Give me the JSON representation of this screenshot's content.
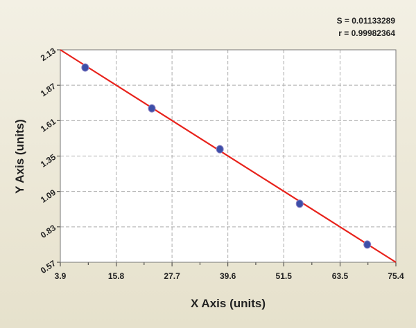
{
  "chart_data": {
    "type": "scatter",
    "x_label": "X Axis (units)",
    "y_label": "Y Axis (units)",
    "annotations": [
      "S = 0.01133289",
      "r = 0.99982364"
    ],
    "points": {
      "color": "#3d4fa8",
      "x": [
        9.2,
        23.4,
        37.9,
        54.9,
        69.3
      ],
      "values": [
        2.0,
        1.7,
        1.4,
        1.0,
        0.7
      ]
    },
    "fit_line": {
      "color": "#e8221b",
      "x": [
        3.9,
        75.4
      ],
      "values": [
        2.13,
        0.57
      ]
    },
    "xlim": [
      3.9,
      75.4
    ],
    "xticks": [
      3.9,
      15.8,
      27.7,
      39.6,
      51.5,
      63.5,
      75.4
    ],
    "ylim": [
      0.57,
      2.13
    ],
    "yticks": [
      0.57,
      0.83,
      1.09,
      1.35,
      1.61,
      1.87,
      2.13
    ],
    "grid": true
  }
}
